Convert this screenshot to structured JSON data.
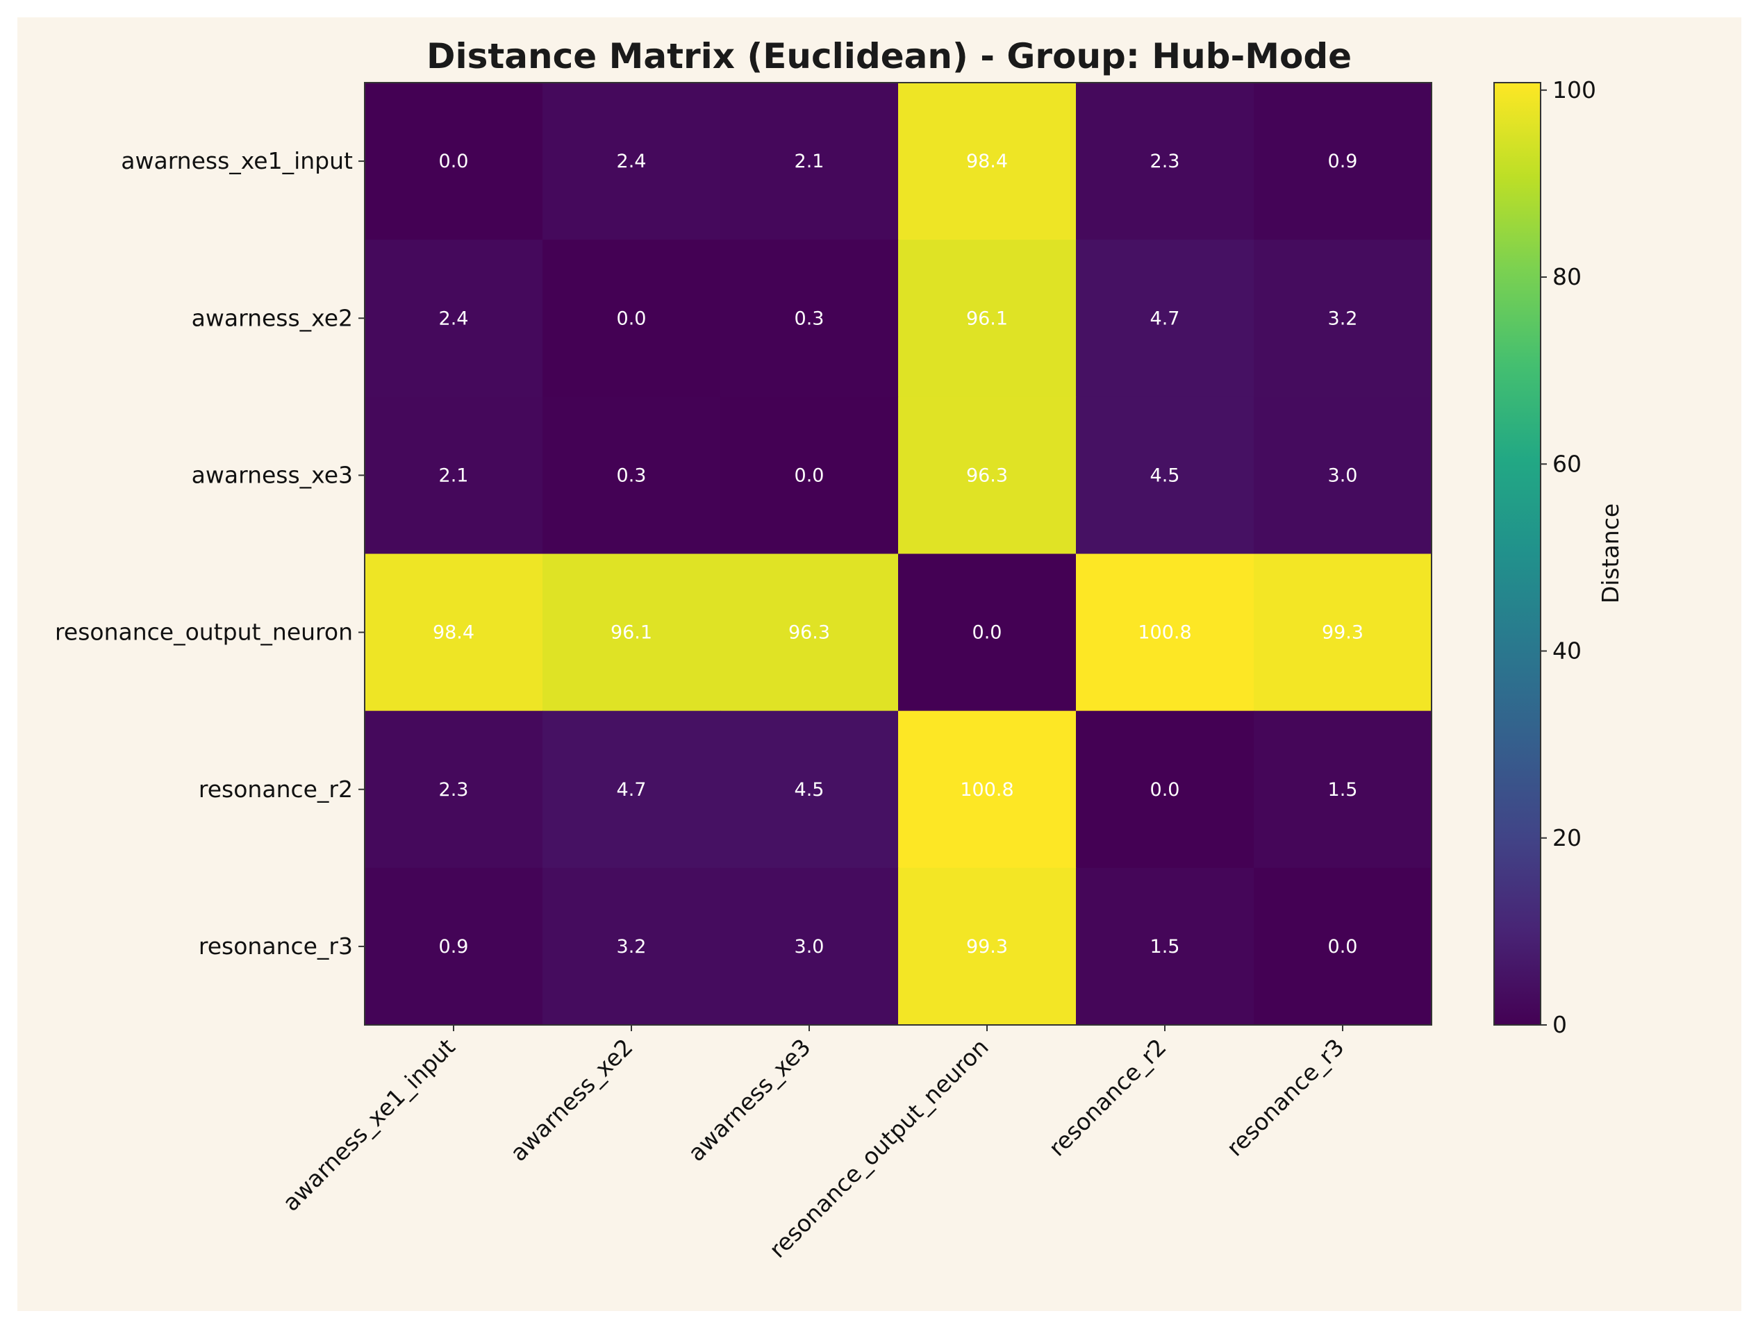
{
  "chart_data": {
    "type": "heatmap",
    "title": "Distance Matrix (Euclidean) - Group: Hub-Mode",
    "row_labels": [
      "awarness_xe1_input",
      "awarness_xe2",
      "awarness_xe3",
      "resonance_output_neuron",
      "resonance_r2",
      "resonance_r3"
    ],
    "col_labels": [
      "awarness_xe1_input",
      "awarness_xe2",
      "awarness_xe3",
      "resonance_output_neuron",
      "resonance_r2",
      "resonance_r3"
    ],
    "values": [
      [
        0.0,
        2.4,
        2.1,
        98.4,
        2.3,
        0.9
      ],
      [
        2.4,
        0.0,
        0.3,
        96.1,
        4.7,
        3.2
      ],
      [
        2.1,
        0.3,
        0.0,
        96.3,
        4.5,
        3.0
      ],
      [
        98.4,
        96.1,
        96.3,
        0.0,
        100.8,
        99.3
      ],
      [
        2.3,
        4.7,
        4.5,
        100.8,
        0.0,
        1.5
      ],
      [
        0.9,
        3.2,
        3.0,
        99.3,
        1.5,
        0.0
      ]
    ],
    "cell_labels": [
      [
        "0.0",
        "2.4",
        "2.1",
        "98.4",
        "2.3",
        "0.9"
      ],
      [
        "2.4",
        "0.0",
        "0.3",
        "96.1",
        "4.7",
        "3.2"
      ],
      [
        "2.1",
        "0.3",
        "0.0",
        "96.3",
        "4.5",
        "3.0"
      ],
      [
        "98.4",
        "96.1",
        "96.3",
        "0.0",
        "100.8",
        "99.3"
      ],
      [
        "2.3",
        "4.7",
        "4.5",
        "100.8",
        "0.0",
        "1.5"
      ],
      [
        "0.9",
        "3.2",
        "3.0",
        "99.3",
        "1.5",
        "0.0"
      ]
    ],
    "colormap": "viridis",
    "vmin": 0,
    "vmax": 100.8,
    "colorbar": {
      "label": "Distance",
      "ticks": [
        0,
        20,
        40,
        60,
        80,
        100
      ],
      "tick_labels": [
        "0",
        "20",
        "40",
        "60",
        "80",
        "100"
      ]
    }
  },
  "colors": {
    "background": "#faf4ea",
    "text": "#111111",
    "cell_text": "#ffffff"
  }
}
